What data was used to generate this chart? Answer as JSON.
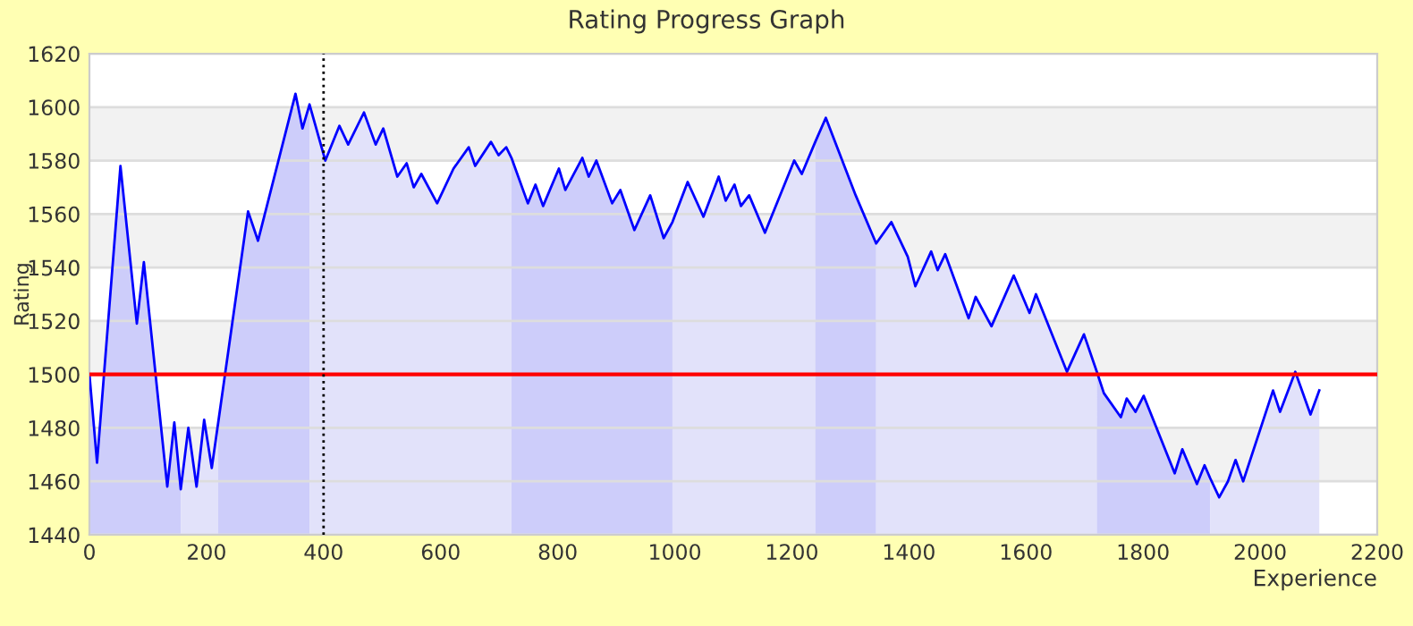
{
  "chart_data": {
    "type": "area",
    "title": "Rating Progress Graph",
    "xlabel": "Experience",
    "ylabel": "Rating",
    "xlim": [
      0,
      2200
    ],
    "xticks": [
      0,
      200,
      400,
      600,
      800,
      1000,
      1200,
      1400,
      1600,
      1800,
      2000,
      2200
    ],
    "ylim": [
      1440,
      1620
    ],
    "yticks": [
      1440,
      1460,
      1480,
      1500,
      1520,
      1540,
      1560,
      1580,
      1600,
      1620
    ],
    "grid": "y",
    "legend": false,
    "marker": "none",
    "line_style": "solid",
    "series": [
      {
        "color": "#cdcdfa",
        "x": [
          0,
          13,
          53,
          81,
          93,
          133,
          145,
          156
        ],
        "values": [
          1500,
          1467,
          1578,
          1519,
          1542,
          1458,
          1482,
          1457
        ]
      },
      {
        "color": "#e2e2fa",
        "x": [
          156,
          169,
          183,
          196,
          209,
          220
        ],
        "values": [
          1457,
          1480,
          1458,
          1483,
          1465,
          1482
        ]
      },
      {
        "color": "#cdcdfa",
        "x": [
          220,
          271,
          288,
          352,
          364,
          376
        ],
        "values": [
          1482,
          1561,
          1550,
          1605,
          1592,
          1601
        ]
      },
      {
        "color": "#e2e2fa",
        "x": [
          376,
          403,
          427,
          442,
          469,
          489,
          502,
          526,
          542,
          554,
          567,
          594,
          622,
          648,
          659,
          686,
          699,
          712,
          721
        ],
        "values": [
          1601,
          1580,
          1593,
          1586,
          1598,
          1586,
          1592,
          1574,
          1579,
          1570,
          1575,
          1564,
          1577,
          1585,
          1578,
          1587,
          1582,
          1585,
          1581
        ]
      },
      {
        "color": "#cdcdfa",
        "x": [
          721,
          749,
          762,
          775,
          802,
          813,
          842,
          853,
          866,
          893,
          907,
          931,
          958,
          981,
          996
        ],
        "values": [
          1581,
          1564,
          1571,
          1563,
          1577,
          1569,
          1581,
          1574,
          1580,
          1564,
          1569,
          1554,
          1567,
          1551,
          1557
        ]
      },
      {
        "color": "#e2e2fa",
        "x": [
          996,
          1022,
          1049,
          1075,
          1087,
          1102,
          1113,
          1127,
          1154,
          1204,
          1217,
          1240
        ],
        "values": [
          1557,
          1572,
          1559,
          1574,
          1565,
          1571,
          1563,
          1567,
          1553,
          1580,
          1575,
          1587
        ]
      },
      {
        "color": "#cdcdfa",
        "x": [
          1240,
          1258,
          1309,
          1344
        ],
        "values": [
          1587,
          1596,
          1567,
          1549
        ]
      },
      {
        "color": "#e2e2fa",
        "x": [
          1344,
          1370,
          1398,
          1411,
          1438,
          1449,
          1462,
          1502,
          1514,
          1541,
          1579,
          1606,
          1617,
          1670,
          1699,
          1721
        ],
        "values": [
          1549,
          1557,
          1544,
          1533,
          1546,
          1539,
          1545,
          1521,
          1529,
          1518,
          1537,
          1523,
          1530,
          1501,
          1515,
          1501
        ]
      },
      {
        "color": "#cdcdfa",
        "x": [
          1721,
          1733,
          1762,
          1772,
          1787,
          1801,
          1854,
          1867,
          1892,
          1905,
          1915
        ],
        "values": [
          1501,
          1493,
          1484,
          1491,
          1486,
          1492,
          1463,
          1472,
          1459,
          1466,
          1461
        ]
      },
      {
        "color": "#e2e2fa",
        "x": [
          1915,
          1930,
          1945,
          1958,
          1971,
          2022,
          2034,
          2060,
          2086,
          2101
        ],
        "values": [
          1461,
          1454,
          1460,
          1468,
          1460,
          1494,
          1486,
          1501,
          1485,
          1494
        ]
      },
      {
        "type": "line",
        "color": "#0000ff",
        "x": [
          0,
          13,
          53,
          81,
          93,
          133,
          145,
          156,
          169,
          183,
          196,
          209,
          220,
          271,
          288,
          352,
          364,
          376,
          403,
          427,
          442,
          469,
          489,
          502,
          526,
          542,
          554,
          567,
          594,
          622,
          648,
          659,
          686,
          699,
          712,
          721,
          749,
          762,
          775,
          802,
          813,
          842,
          853,
          866,
          893,
          907,
          931,
          958,
          981,
          996,
          1022,
          1049,
          1075,
          1087,
          1102,
          1113,
          1127,
          1154,
          1204,
          1217,
          1240,
          1258,
          1309,
          1344,
          1370,
          1398,
          1411,
          1438,
          1449,
          1462,
          1502,
          1514,
          1541,
          1579,
          1606,
          1617,
          1670,
          1699,
          1721,
          1733,
          1762,
          1772,
          1787,
          1801,
          1854,
          1867,
          1892,
          1905,
          1915,
          1930,
          1945,
          1958,
          1971,
          2022,
          2034,
          2060,
          2086,
          2101
        ],
        "values": [
          1500,
          1467,
          1578,
          1519,
          1542,
          1458,
          1482,
          1457,
          1480,
          1458,
          1483,
          1465,
          1482,
          1561,
          1550,
          1605,
          1592,
          1601,
          1580,
          1593,
          1586,
          1598,
          1586,
          1592,
          1574,
          1579,
          1570,
          1575,
          1564,
          1577,
          1585,
          1578,
          1587,
          1582,
          1585,
          1581,
          1564,
          1571,
          1563,
          1577,
          1569,
          1581,
          1574,
          1580,
          1564,
          1569,
          1554,
          1567,
          1551,
          1557,
          1572,
          1559,
          1574,
          1565,
          1571,
          1563,
          1567,
          1553,
          1580,
          1575,
          1587,
          1596,
          1567,
          1549,
          1557,
          1544,
          1533,
          1546,
          1539,
          1545,
          1521,
          1529,
          1518,
          1537,
          1523,
          1530,
          1501,
          1515,
          1501,
          1493,
          1484,
          1491,
          1486,
          1492,
          1463,
          1472,
          1459,
          1466,
          1461,
          1454,
          1460,
          1468,
          1460,
          1494,
          1486,
          1501,
          1485,
          1494
        ]
      }
    ],
    "ref_lines": [
      {
        "axis": "y",
        "value": 1500,
        "color": "#ff0000",
        "line_style": "solid"
      },
      {
        "axis": "x",
        "value": 400,
        "color": "#000000",
        "line_style": "dotted"
      }
    ]
  }
}
